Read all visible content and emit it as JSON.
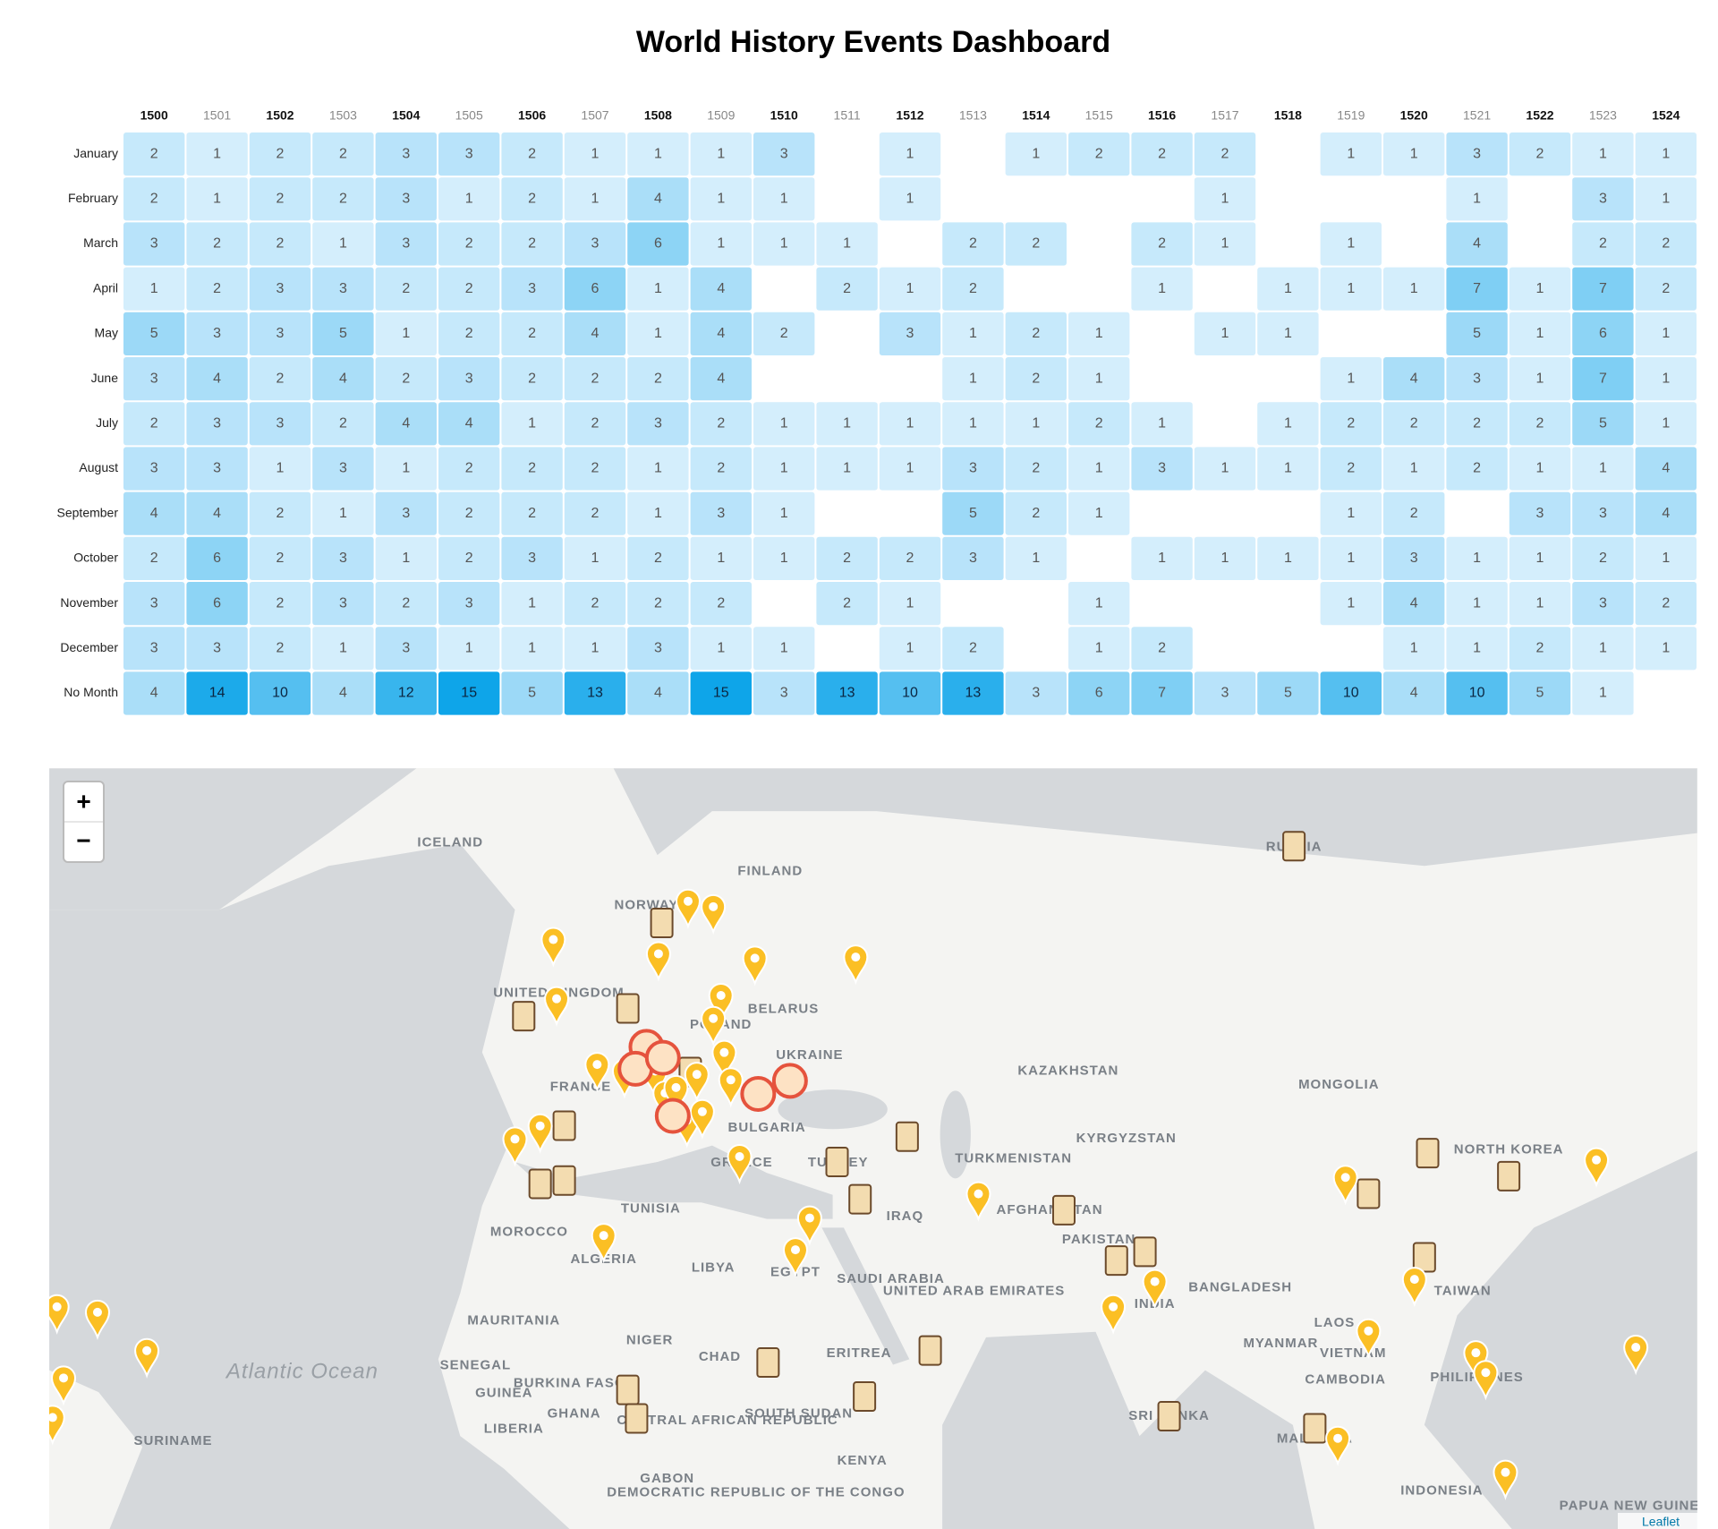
{
  "header": {
    "title": "World History Events Dashboard"
  },
  "chart_data": {
    "type": "heatmap",
    "x": [
      1500,
      1501,
      1502,
      1503,
      1504,
      1505,
      1506,
      1507,
      1508,
      1509,
      1510,
      1511,
      1512,
      1513,
      1514,
      1515,
      1516,
      1517,
      1518,
      1519,
      1520,
      1521,
      1522,
      1523,
      1524
    ],
    "y": [
      "January",
      "February",
      "March",
      "April",
      "May",
      "June",
      "July",
      "August",
      "September",
      "October",
      "November",
      "December",
      "No Month"
    ],
    "values": [
      [
        2,
        1,
        2,
        2,
        3,
        3,
        2,
        1,
        1,
        1,
        3,
        null,
        1,
        null,
        1,
        2,
        2,
        2,
        null,
        1,
        1,
        3,
        2,
        1,
        1
      ],
      [
        2,
        1,
        2,
        2,
        3,
        1,
        2,
        1,
        4,
        1,
        1,
        null,
        1,
        null,
        null,
        null,
        null,
        1,
        null,
        null,
        null,
        1,
        null,
        3,
        1
      ],
      [
        3,
        2,
        2,
        1,
        3,
        2,
        2,
        3,
        6,
        1,
        1,
        1,
        null,
        2,
        2,
        null,
        2,
        1,
        null,
        1,
        null,
        4,
        null,
        2,
        2
      ],
      [
        1,
        2,
        3,
        3,
        2,
        2,
        3,
        6,
        1,
        4,
        null,
        2,
        1,
        2,
        null,
        null,
        1,
        null,
        1,
        1,
        1,
        7,
        1,
        7,
        2
      ],
      [
        5,
        3,
        3,
        5,
        1,
        2,
        2,
        4,
        1,
        4,
        2,
        null,
        3,
        1,
        2,
        1,
        null,
        1,
        1,
        null,
        null,
        5,
        1,
        6,
        1
      ],
      [
        3,
        4,
        2,
        4,
        2,
        3,
        2,
        2,
        2,
        4,
        null,
        null,
        null,
        1,
        2,
        1,
        null,
        null,
        null,
        1,
        4,
        3,
        1,
        7,
        1
      ],
      [
        2,
        3,
        3,
        2,
        4,
        4,
        1,
        2,
        3,
        2,
        1,
        1,
        1,
        1,
        1,
        2,
        1,
        null,
        1,
        2,
        2,
        2,
        2,
        5,
        1
      ],
      [
        3,
        3,
        1,
        3,
        1,
        2,
        2,
        2,
        1,
        2,
        1,
        1,
        1,
        3,
        2,
        1,
        3,
        1,
        1,
        2,
        1,
        2,
        1,
        1,
        4
      ],
      [
        4,
        4,
        2,
        1,
        3,
        2,
        2,
        2,
        1,
        3,
        1,
        null,
        null,
        5,
        2,
        1,
        null,
        null,
        null,
        1,
        2,
        null,
        3,
        3,
        4
      ],
      [
        2,
        6,
        2,
        3,
        1,
        2,
        3,
        1,
        2,
        1,
        1,
        2,
        2,
        3,
        1,
        null,
        1,
        1,
        1,
        1,
        3,
        1,
        1,
        2,
        1
      ],
      [
        3,
        6,
        2,
        3,
        2,
        3,
        1,
        2,
        2,
        2,
        null,
        2,
        1,
        null,
        null,
        1,
        null,
        null,
        null,
        1,
        4,
        1,
        1,
        3,
        2
      ],
      [
        3,
        3,
        2,
        1,
        3,
        1,
        1,
        1,
        3,
        1,
        1,
        null,
        1,
        2,
        null,
        1,
        2,
        null,
        null,
        null,
        1,
        1,
        2,
        1,
        1
      ],
      [
        4,
        14,
        10,
        4,
        12,
        15,
        5,
        13,
        4,
        15,
        3,
        13,
        10,
        13,
        3,
        6,
        7,
        3,
        5,
        10,
        4,
        10,
        5,
        1,
        null
      ]
    ],
    "colors": [
      "#f0f8ff",
      "#0ea5e9"
    ]
  },
  "map": {
    "zoom_in": "+",
    "zoom_out": "−",
    "attribution": "Leaflet",
    "labels": [
      "ICELAND",
      "FINLAND",
      "NORWAY",
      "RUSSIA",
      "UNITED KINGDOM",
      "BELARUS",
      "POLAND",
      "UKRAINE",
      "KAZAKHSTAN",
      "MONGOLIA",
      "FRANCE",
      "BULGARIA",
      "KYRGYZSTAN",
      "TURKMENISTAN",
      "GREECE",
      "TURKEY",
      "NORTH KOREA",
      "TUNISIA",
      "IRAQ",
      "AFGHANISTAN",
      "PAKISTAN",
      "MOROCCO",
      "ALGERIA",
      "LIBYA",
      "EGYPT",
      "SAUDI ARABIA",
      "UNITED ARAB EMIRATES",
      "BANGLADESH",
      "TAIWAN",
      "INDIA",
      "MAURITANIA",
      "LAOS",
      "NIGER",
      "CHAD",
      "MYANMAR",
      "ERITREA",
      "SENEGAL",
      "BURKINA FASO",
      "VIETNAM",
      "CAMBODIA",
      "PHILIPPINES",
      "GUINEA",
      "GHANA",
      "CENTRAL AFRICAN REPUBLIC",
      "SOUTH SUDAN",
      "SURINAME",
      "LIBERIA",
      "SRI LANKA",
      "MALAYSIA",
      "KENYA",
      "GABON",
      "DEMOCRATIC REPUBLIC OF THE CONGO",
      "INDONESIA",
      "PAPUA NEW GUINEA",
      "Atlantic Ocean"
    ]
  }
}
